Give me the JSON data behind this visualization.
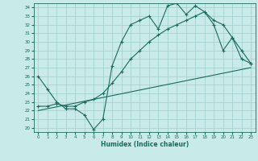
{
  "title": "",
  "xlabel": "Humidex (Indice chaleur)",
  "ylabel": "",
  "xlim": [
    -0.5,
    23.5
  ],
  "ylim": [
    19.5,
    34.5
  ],
  "yticks": [
    20,
    21,
    22,
    23,
    24,
    25,
    26,
    27,
    28,
    29,
    30,
    31,
    32,
    33,
    34
  ],
  "xticks": [
    0,
    1,
    2,
    3,
    4,
    5,
    6,
    7,
    8,
    9,
    10,
    11,
    12,
    13,
    14,
    15,
    16,
    17,
    18,
    19,
    20,
    21,
    22,
    23
  ],
  "line_color": "#1a6b5c",
  "bg_color": "#c8eae8",
  "grid_color": "#9dcfcc",
  "series1_x": [
    0,
    1,
    2,
    3,
    4,
    5,
    6,
    7,
    8,
    9,
    10,
    11,
    12,
    13,
    14,
    15,
    16,
    17,
    18,
    19,
    20,
    21,
    22,
    23
  ],
  "series1_y": [
    26.0,
    24.5,
    23.0,
    22.2,
    22.2,
    21.5,
    19.8,
    21.0,
    27.2,
    30.0,
    32.0,
    32.5,
    33.0,
    31.5,
    34.2,
    34.5,
    33.2,
    34.2,
    33.5,
    32.0,
    29.0,
    30.5,
    28.0,
    27.5
  ],
  "series2_x": [
    0,
    23
  ],
  "series2_y": [
    22.0,
    27.0
  ],
  "series3_x": [
    0,
    1,
    2,
    3,
    4,
    5,
    6,
    7,
    8,
    9,
    10,
    11,
    12,
    13,
    14,
    15,
    16,
    17,
    18,
    19,
    20,
    21,
    22,
    23
  ],
  "series3_y": [
    22.5,
    22.5,
    22.8,
    22.5,
    22.5,
    23.0,
    23.3,
    24.0,
    25.2,
    26.5,
    28.0,
    29.0,
    30.0,
    30.8,
    31.5,
    32.0,
    32.5,
    33.0,
    33.5,
    32.5,
    32.0,
    30.5,
    29.0,
    27.5
  ]
}
